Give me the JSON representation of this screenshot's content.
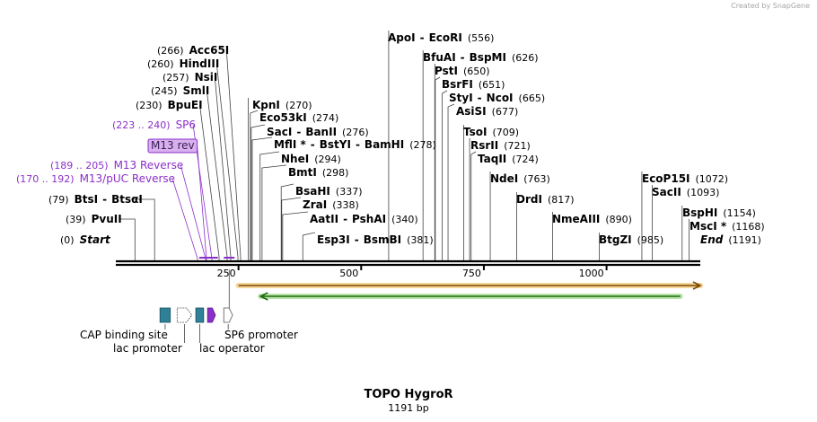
{
  "credit": "Created by SnapGene",
  "title": "TOPO HygroR",
  "length_label": "1191 bp",
  "sequence_length": 1191,
  "ruler": {
    "ticks": [
      250,
      500,
      750,
      1000
    ],
    "labels": [
      "250",
      "500",
      "750",
      "1000"
    ]
  },
  "colors": {
    "backbone": "#000000",
    "site_label": "#000000",
    "primer": "#8b2fc9",
    "primer_fill": "#d8b0ee",
    "orange_arrow": "#e8a21c",
    "green_arrow": "#5cc43a",
    "feature_teal": "#2e8197"
  },
  "sites": [
    {
      "id": "start",
      "pos": 0,
      "parts": [
        [
          "(0)",
          "num"
        ],
        [
          "Start",
          "italic"
        ]
      ]
    },
    {
      "id": "pvuii",
      "pos": 39,
      "parts": [
        [
          "(39)",
          "num"
        ],
        [
          "PvuII",
          "name"
        ]
      ]
    },
    {
      "id": "btsi",
      "pos": 79,
      "parts": [
        [
          "(79)",
          "num"
        ],
        [
          "BtsI",
          "name"
        ],
        [
          "-",
          "dash"
        ],
        [
          "BtsαI",
          "name"
        ]
      ]
    },
    {
      "id": "m13pucrev",
      "pos": 181,
      "color": "primer",
      "parts": [
        [
          "(170 .. 192)",
          "pnum"
        ],
        [
          "M13/pUC Reverse",
          "pname"
        ]
      ]
    },
    {
      "id": "m13reverse",
      "pos": 197,
      "color": "primer",
      "parts": [
        [
          "(189 .. 205)",
          "pnum"
        ],
        [
          "M13 Reverse",
          "pname"
        ]
      ]
    },
    {
      "id": "m13rev",
      "pos": 197,
      "color": "primer",
      "boxed": true,
      "parts": [
        [
          "M13 rev",
          "pbox"
        ]
      ]
    },
    {
      "id": "sp6",
      "pos": 231,
      "color": "primer",
      "parts": [
        [
          "(223 .. 240)",
          "pnum"
        ],
        [
          "SP6",
          "pname"
        ]
      ]
    },
    {
      "id": "bpuei",
      "pos": 230,
      "parts": [
        [
          "(230)",
          "num"
        ],
        [
          "BpuEI",
          "name"
        ]
      ]
    },
    {
      "id": "smli",
      "pos": 245,
      "parts": [
        [
          "(245)",
          "num"
        ],
        [
          "SmlI",
          "name"
        ]
      ]
    },
    {
      "id": "nsii",
      "pos": 257,
      "parts": [
        [
          "(257)",
          "num"
        ],
        [
          "NsiI",
          "name"
        ]
      ]
    },
    {
      "id": "hindiii",
      "pos": 260,
      "parts": [
        [
          "(260)",
          "num"
        ],
        [
          "HindIII",
          "name"
        ]
      ]
    },
    {
      "id": "acc65i",
      "pos": 266,
      "parts": [
        [
          "(266)",
          "num"
        ],
        [
          "Acc65I",
          "name"
        ]
      ]
    },
    {
      "id": "kpni",
      "pos": 270,
      "parts": [
        [
          "KpnI",
          "name"
        ],
        [
          "(270)",
          "num"
        ]
      ]
    },
    {
      "id": "eco53ki",
      "pos": 274,
      "parts": [
        [
          "Eco53kI",
          "name"
        ],
        [
          "(274)",
          "num"
        ]
      ]
    },
    {
      "id": "saci",
      "pos": 276,
      "parts": [
        [
          "SacI",
          "name"
        ],
        [
          "-",
          "dash"
        ],
        [
          "BanII",
          "name"
        ],
        [
          "(276)",
          "num"
        ]
      ]
    },
    {
      "id": "mfli",
      "pos": 278,
      "parts": [
        [
          "MflI *",
          "name"
        ],
        [
          "-",
          "dash"
        ],
        [
          "BstYI",
          "name"
        ],
        [
          "-",
          "dash"
        ],
        [
          "BamHI",
          "name"
        ],
        [
          "(278)",
          "num"
        ]
      ]
    },
    {
      "id": "nhei",
      "pos": 294,
      "parts": [
        [
          "NheI",
          "name"
        ],
        [
          "(294)",
          "num"
        ]
      ]
    },
    {
      "id": "bmti",
      "pos": 298,
      "parts": [
        [
          "BmtI",
          "name"
        ],
        [
          "(298)",
          "num"
        ]
      ]
    },
    {
      "id": "bsahi",
      "pos": 337,
      "parts": [
        [
          "BsaHI",
          "name"
        ],
        [
          "(337)",
          "num"
        ]
      ]
    },
    {
      "id": "zrai",
      "pos": 338,
      "parts": [
        [
          "ZraI",
          "name"
        ],
        [
          "(338)",
          "num"
        ]
      ]
    },
    {
      "id": "aatii",
      "pos": 340,
      "parts": [
        [
          "AatII",
          "name"
        ],
        [
          "-",
          "dash"
        ],
        [
          "PshAI",
          "name"
        ],
        [
          "(340)",
          "num"
        ]
      ]
    },
    {
      "id": "esp3i",
      "pos": 381,
      "parts": [
        [
          "Esp3I",
          "name"
        ],
        [
          "-",
          "dash"
        ],
        [
          "BsmBI",
          "name"
        ],
        [
          "(381)",
          "num"
        ]
      ]
    },
    {
      "id": "apoi",
      "pos": 556,
      "parts": [
        [
          "ApoI",
          "name"
        ],
        [
          "-",
          "dash"
        ],
        [
          "EcoRI",
          "name"
        ],
        [
          "(556)",
          "num"
        ]
      ]
    },
    {
      "id": "bfuai",
      "pos": 626,
      "parts": [
        [
          "BfuAI",
          "name"
        ],
        [
          "-",
          "dash"
        ],
        [
          "BspMI",
          "name"
        ],
        [
          "(626)",
          "num"
        ]
      ]
    },
    {
      "id": "psti",
      "pos": 650,
      "parts": [
        [
          "PstI",
          "name"
        ],
        [
          "(650)",
          "num"
        ]
      ]
    },
    {
      "id": "bsrfi",
      "pos": 651,
      "parts": [
        [
          "BsrFI",
          "name"
        ],
        [
          "(651)",
          "num"
        ]
      ]
    },
    {
      "id": "styi",
      "pos": 665,
      "parts": [
        [
          "StyI",
          "name"
        ],
        [
          "-",
          "dash"
        ],
        [
          "NcoI",
          "name"
        ],
        [
          "(665)",
          "num"
        ]
      ]
    },
    {
      "id": "asisi",
      "pos": 677,
      "parts": [
        [
          "AsiSI",
          "name"
        ],
        [
          "(677)",
          "num"
        ]
      ]
    },
    {
      "id": "tsoi",
      "pos": 709,
      "parts": [
        [
          "TsoI",
          "name"
        ],
        [
          "(709)",
          "num"
        ]
      ]
    },
    {
      "id": "rsrii",
      "pos": 721,
      "parts": [
        [
          "RsrII",
          "name"
        ],
        [
          "(721)",
          "num"
        ]
      ]
    },
    {
      "id": "taqii",
      "pos": 724,
      "parts": [
        [
          "TaqII",
          "name"
        ],
        [
          "(724)",
          "num"
        ]
      ]
    },
    {
      "id": "ndei",
      "pos": 763,
      "parts": [
        [
          "NdeI",
          "name"
        ],
        [
          "(763)",
          "num"
        ]
      ]
    },
    {
      "id": "drdi",
      "pos": 817,
      "parts": [
        [
          "DrdI",
          "name"
        ],
        [
          "(817)",
          "num"
        ]
      ]
    },
    {
      "id": "nmeaiii",
      "pos": 890,
      "parts": [
        [
          "NmeAIII",
          "name"
        ],
        [
          "(890)",
          "num"
        ]
      ]
    },
    {
      "id": "btgzi",
      "pos": 985,
      "parts": [
        [
          "BtgZI",
          "name"
        ],
        [
          "(985)",
          "num"
        ]
      ]
    },
    {
      "id": "ecop15i",
      "pos": 1072,
      "parts": [
        [
          "EcoP15I",
          "name"
        ],
        [
          "(1072)",
          "num"
        ]
      ]
    },
    {
      "id": "sacii",
      "pos": 1093,
      "parts": [
        [
          "SacII",
          "name"
        ],
        [
          "(1093)",
          "num"
        ]
      ]
    },
    {
      "id": "bsphi",
      "pos": 1154,
      "parts": [
        [
          "BspHI",
          "name"
        ],
        [
          "(1154)",
          "num"
        ]
      ]
    },
    {
      "id": "msci",
      "pos": 1168,
      "parts": [
        [
          "MscI *",
          "name"
        ],
        [
          "(1168)",
          "num"
        ]
      ]
    },
    {
      "id": "end",
      "pos": 1191,
      "parts": [
        [
          "End",
          "italic"
        ],
        [
          "(1191)",
          "num"
        ]
      ]
    }
  ],
  "features": [
    {
      "id": "cap",
      "name": "CAP binding site",
      "start": 90,
      "end": 111,
      "shape": "box",
      "fill": "#2e8197"
    },
    {
      "id": "lacp",
      "name": "lac promoter",
      "start": 125,
      "end": 155,
      "shape": "arrow-open",
      "fill": "#ffffff"
    },
    {
      "id": "laco",
      "name": "lac operator",
      "start": 163,
      "end": 179,
      "shape": "box",
      "fill": "#2e8197"
    },
    {
      "id": "m13feat",
      "name": "",
      "start": 187,
      "end": 203,
      "shape": "arrow-filled",
      "fill": "#8b2fc9"
    },
    {
      "id": "sp6p",
      "name": "SP6 promoter",
      "start": 220,
      "end": 238,
      "shape": "arrow-open",
      "fill": "#ffffff"
    }
  ],
  "long_arrows": [
    {
      "id": "orange",
      "start": 250,
      "end": 1191,
      "dir": "right",
      "color": "#e8a21c"
    },
    {
      "id": "green",
      "start": 295,
      "end": 1150,
      "dir": "left",
      "color": "#5cc43a"
    }
  ]
}
